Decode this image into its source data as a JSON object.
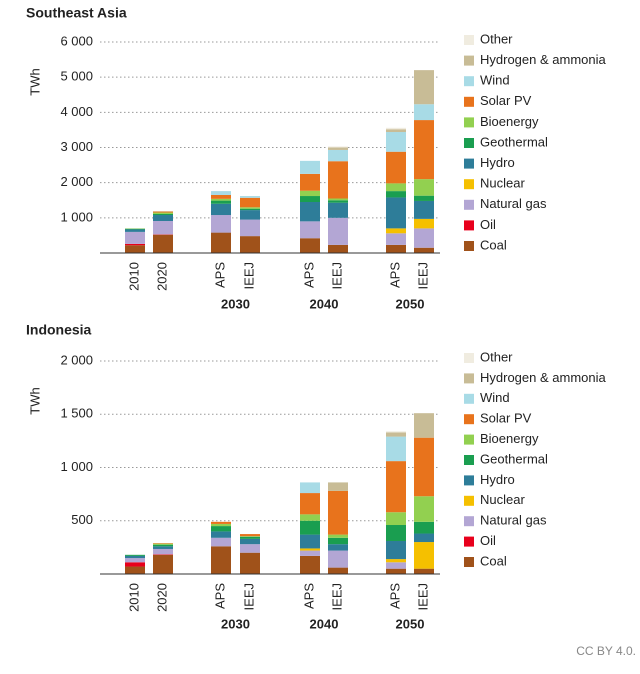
{
  "chart_data": [
    {
      "type": "bar",
      "stacked": true,
      "title": "Southeast Asia",
      "y_label": "TWh",
      "categories": [
        "2010",
        "2020",
        "APS",
        "IEEJ",
        "APS",
        "IEEJ",
        "APS",
        "IEEJ"
      ],
      "group_labels": [
        "2030",
        "2040",
        "2050"
      ],
      "ylim": [
        0,
        6000
      ],
      "yticks": [
        {
          "value": 1000,
          "label": "1 000"
        },
        {
          "value": 2000,
          "label": "2 000"
        },
        {
          "value": 3000,
          "label": "3 000"
        },
        {
          "value": 4000,
          "label": "4 000"
        },
        {
          "value": 5000,
          "label": "5 000"
        },
        {
          "value": 6000,
          "label": "6 000"
        }
      ],
      "grid": true,
      "series": [
        {
          "name": "Coal",
          "color": "#a0521a",
          "values": [
            220,
            520,
            580,
            480,
            420,
            230,
            230,
            150
          ]
        },
        {
          "name": "Oil",
          "color": "#e8001c",
          "values": [
            40,
            10,
            0,
            0,
            0,
            0,
            0,
            0
          ]
        },
        {
          "name": "Natural gas",
          "color": "#b3a6d4",
          "values": [
            340,
            380,
            500,
            470,
            480,
            770,
            330,
            550
          ]
        },
        {
          "name": "Nuclear",
          "color": "#f5c000",
          "values": [
            0,
            0,
            0,
            0,
            0,
            0,
            140,
            270
          ]
        },
        {
          "name": "Hydro",
          "color": "#2e7d99",
          "values": [
            70,
            170,
            320,
            270,
            550,
            430,
            880,
            510
          ]
        },
        {
          "name": "Geothermal",
          "color": "#1a9e50",
          "values": [
            20,
            30,
            90,
            40,
            170,
            70,
            180,
            150
          ]
        },
        {
          "name": "Bioenergy",
          "color": "#92d050",
          "values": [
            10,
            40,
            50,
            40,
            150,
            50,
            220,
            470
          ]
        },
        {
          "name": "Solar PV",
          "color": "#e8731c",
          "values": [
            0,
            30,
            110,
            270,
            480,
            1060,
            900,
            1680
          ]
        },
        {
          "name": "Wind",
          "color": "#a8dbe6",
          "values": [
            0,
            5,
            110,
            50,
            370,
            320,
            560,
            450
          ]
        },
        {
          "name": "Hydrogen & ammonia",
          "color": "#c8bc96",
          "values": [
            0,
            0,
            0,
            0,
            0,
            70,
            80,
            970
          ]
        },
        {
          "name": "Other",
          "color": "#f0ece0",
          "values": [
            0,
            5,
            0,
            0,
            0,
            30,
            40,
            0
          ]
        }
      ]
    },
    {
      "type": "bar",
      "stacked": true,
      "title": "Indonesia",
      "y_label": "TWh",
      "categories": [
        "2010",
        "2020",
        "APS",
        "IEEJ",
        "APS",
        "IEEJ",
        "APS",
        "IEEJ"
      ],
      "group_labels": [
        "2030",
        "2040",
        "2050"
      ],
      "ylim": [
        0,
        2000
      ],
      "yticks": [
        500,
        {
          "value": 1000,
          "label": "1 000"
        },
        {
          "value": 1500,
          "label": "1 500"
        },
        {
          "value": 2000,
          "label": "2 000"
        }
      ],
      "grid": true,
      "series": [
        {
          "name": "Coal",
          "color": "#a0521a",
          "values": [
            70,
            180,
            260,
            200,
            170,
            60,
            50,
            50
          ]
        },
        {
          "name": "Oil",
          "color": "#e8001c",
          "values": [
            40,
            5,
            0,
            0,
            0,
            0,
            0,
            0
          ]
        },
        {
          "name": "Natural gas",
          "color": "#b3a6d4",
          "values": [
            40,
            50,
            80,
            80,
            50,
            160,
            60,
            0
          ]
        },
        {
          "name": "Nuclear",
          "color": "#f5c000",
          "values": [
            0,
            0,
            0,
            0,
            20,
            0,
            30,
            250
          ]
        },
        {
          "name": "Hydro",
          "color": "#2e7d99",
          "values": [
            20,
            25,
            60,
            50,
            130,
            60,
            170,
            80
          ]
        },
        {
          "name": "Geothermal",
          "color": "#1a9e50",
          "values": [
            10,
            15,
            50,
            20,
            130,
            60,
            150,
            110
          ]
        },
        {
          "name": "Bioenergy",
          "color": "#92d050",
          "values": [
            0,
            10,
            20,
            5,
            60,
            30,
            120,
            240
          ]
        },
        {
          "name": "Solar PV",
          "color": "#e8731c",
          "values": [
            0,
            5,
            20,
            20,
            200,
            410,
            480,
            550
          ]
        },
        {
          "name": "Wind",
          "color": "#a8dbe6",
          "values": [
            0,
            0,
            0,
            0,
            100,
            0,
            230,
            0
          ]
        },
        {
          "name": "Hydrogen & ammonia",
          "color": "#c8bc96",
          "values": [
            0,
            0,
            0,
            0,
            0,
            80,
            40,
            230
          ]
        },
        {
          "name": "Other",
          "color": "#f0ece0",
          "values": [
            0,
            0,
            0,
            0,
            0,
            0,
            10,
            0
          ]
        }
      ]
    }
  ],
  "credit": "CC BY 4.0."
}
